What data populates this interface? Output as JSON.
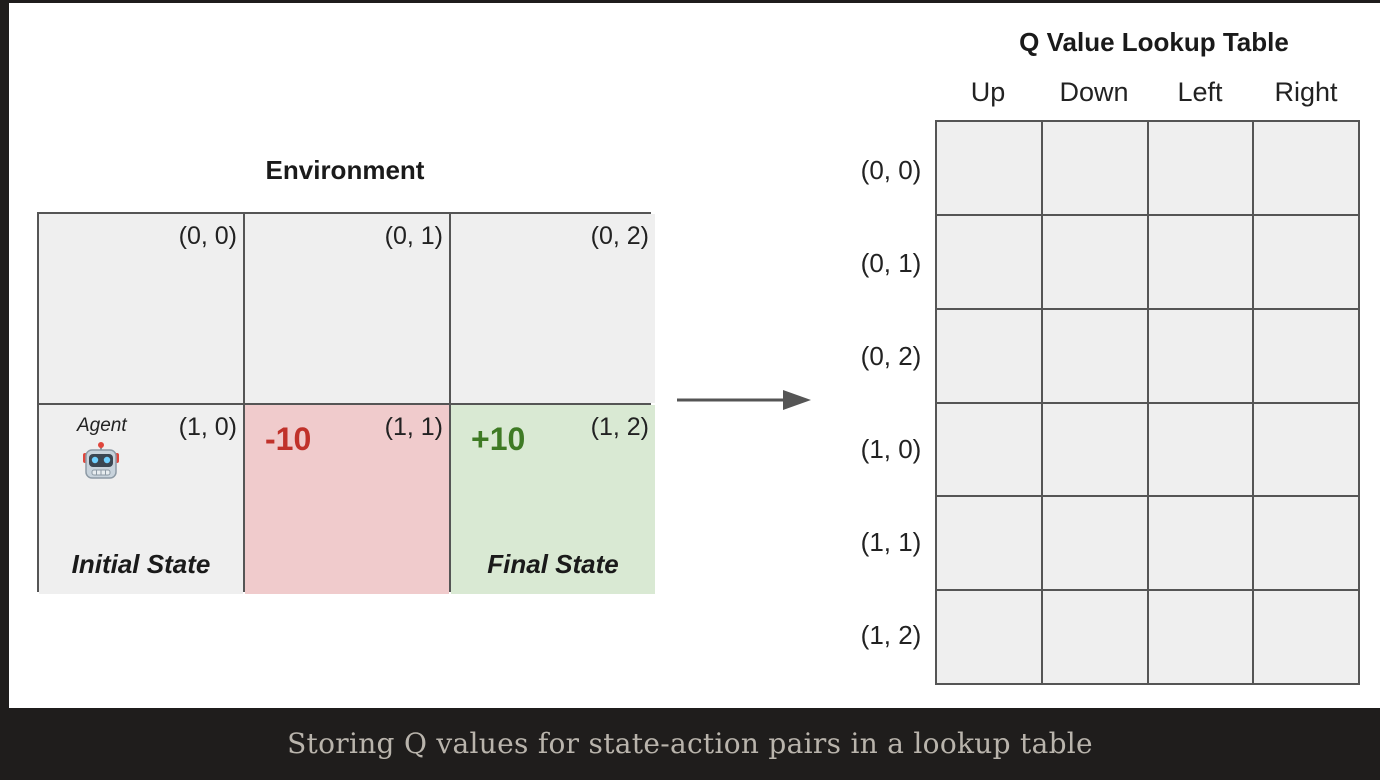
{
  "environment": {
    "title": "Environment",
    "agent_label": "Agent",
    "cells": [
      {
        "coord": "(0, 0)"
      },
      {
        "coord": "(0, 1)"
      },
      {
        "coord": "(0, 2)"
      },
      {
        "coord": "(1, 0)",
        "state_label": "Initial State",
        "icon": "robot-icon"
      },
      {
        "coord": "(1, 1)",
        "reward": "-10",
        "reward_color": "#c0312a",
        "fill": "#f0cbcc"
      },
      {
        "coord": "(1, 2)",
        "reward": "+10",
        "reward_color": "#3e7a24",
        "fill": "#d9e9d3",
        "state_label": "Final State"
      }
    ]
  },
  "q_table": {
    "title": "Q Value Lookup Table",
    "columns": [
      "Up",
      "Down",
      "Left",
      "Right"
    ],
    "rows": [
      "(0, 0)",
      "(0, 1)",
      "(0, 2)",
      "(1, 0)",
      "(1, 1)",
      "(1, 2)"
    ]
  },
  "caption": "Storing Q values for state-action pairs in a lookup table",
  "colors": {
    "cell_fill": "#efefef",
    "grid_line": "#555555",
    "caption_bar": "#1f1d1c"
  }
}
